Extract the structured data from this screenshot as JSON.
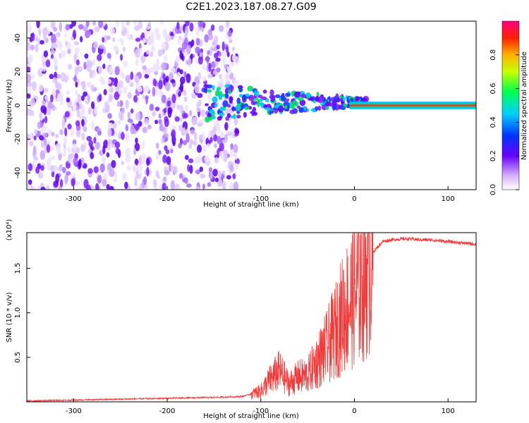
{
  "title": "C2E1.2023.187.08.27.G09",
  "colors": {
    "snr_line": "#ee3b3b",
    "spectrogram_scatter": "#7b1fff",
    "spectrogram_line": "#e83535",
    "axis": "#000000"
  },
  "chart_data": [
    {
      "type": "heatmap",
      "name": "spectrogram",
      "title": "C2E1.2023.187.08.27.G09",
      "xlabel": "Height of straight line (km)",
      "ylabel": "Frequency (Hz)",
      "xlim": [
        -350,
        130
      ],
      "ylim": [
        -50,
        50
      ],
      "xticks": [
        -300,
        -200,
        -100,
        0,
        100
      ],
      "yticks": [
        -40,
        -20,
        0,
        20,
        40
      ],
      "xtick_labels": [
        "-300",
        "-200",
        "-100",
        "0",
        "100"
      ],
      "ytick_labels": [
        "-40",
        "-20",
        "0",
        "20",
        "40"
      ],
      "ridge_note": "coherent signal near 0 Hz above -160 km, strongest (amplitude ~0.9) from 0 to 130 km",
      "noise_region_km": [
        -350,
        -125
      ],
      "colorbar": {
        "label": "Normalized spectral amplitude",
        "range": [
          0,
          1
        ],
        "ticks": [
          0.0,
          0.2,
          0.4,
          0.6,
          0.8
        ],
        "tick_labels": [
          "0.0",
          "0.2",
          "0.4",
          "0.6",
          "0.8"
        ]
      }
    },
    {
      "type": "line",
      "name": "snr",
      "xlabel": "Height of straight line (km)",
      "ylabel": "SNR (10 * v/v)",
      "ylabel_scale": "(x10⁴)",
      "xlim": [
        -350,
        130
      ],
      "ylim": [
        0,
        1.9
      ],
      "xticks": [
        -300,
        -200,
        -100,
        0,
        100
      ],
      "yticks": [
        0.5,
        1.0,
        1.5
      ],
      "xtick_labels": [
        "-300",
        "-200",
        "-100",
        "0",
        "100"
      ],
      "ytick_labels": [
        "0.5",
        "1.0",
        "1.5"
      ],
      "series": [
        {
          "name": "SNR",
          "x": [
            -350,
            -300,
            -250,
            -200,
            -150,
            -120,
            -100,
            -90,
            -80,
            -70,
            -60,
            -50,
            -40,
            -30,
            -20,
            -10,
            0,
            10,
            20,
            30,
            40,
            50,
            60,
            70,
            80,
            90,
            100,
            110,
            120,
            130
          ],
          "y": [
            0.01,
            0.02,
            0.03,
            0.04,
            0.05,
            0.06,
            0.12,
            0.25,
            0.35,
            0.2,
            0.28,
            0.3,
            0.45,
            0.6,
            0.8,
            1.05,
            1.2,
            1.4,
            1.68,
            1.8,
            1.82,
            1.83,
            1.83,
            1.82,
            1.82,
            1.81,
            1.8,
            1.79,
            1.78,
            1.77
          ]
        }
      ]
    }
  ]
}
